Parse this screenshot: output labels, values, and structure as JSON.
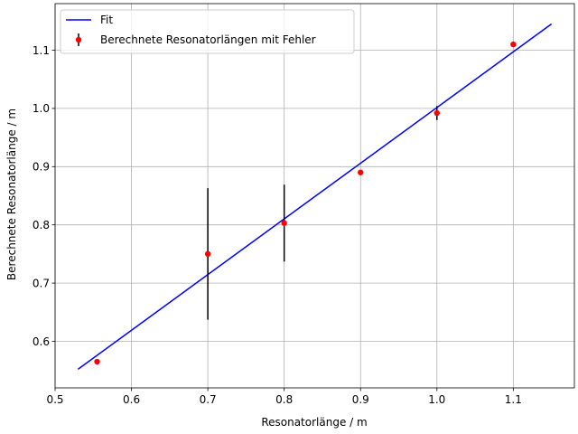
{
  "chart_data": {
    "type": "scatter",
    "title": "",
    "xlabel": "Resonatorlänge / m",
    "ylabel": "Berechnete Resonatorlänge / m",
    "xlim": [
      0.5,
      1.18
    ],
    "ylim": [
      0.52,
      1.18
    ],
    "xticks": [
      "0.5",
      "0.6",
      "0.7",
      "0.8",
      "0.9",
      "1.0",
      "1.1"
    ],
    "yticks": [
      "0.6",
      "0.7",
      "0.8",
      "0.9",
      "1.0",
      "1.1"
    ],
    "grid": true,
    "legend_position": "top-left",
    "series": [
      {
        "name": "Fit",
        "kind": "line",
        "color": "#0000ff",
        "x": [
          0.53,
          1.15
        ],
        "y": [
          0.552,
          1.145
        ]
      },
      {
        "name": "Berechnete Resonatorlängen mit Fehler",
        "kind": "errorbar",
        "marker_color": "#ff0000",
        "errorbar_color": "#000000",
        "points": [
          {
            "x": 0.555,
            "y": 0.565,
            "err": 0.0
          },
          {
            "x": 0.7,
            "y": 0.75,
            "err": 0.113
          },
          {
            "x": 0.8,
            "y": 0.803,
            "err": 0.066
          },
          {
            "x": 0.9,
            "y": 0.89,
            "err": 0.0
          },
          {
            "x": 1.0,
            "y": 0.992,
            "err": 0.012
          },
          {
            "x": 1.1,
            "y": 1.11,
            "err": 0.0
          }
        ]
      }
    ]
  }
}
